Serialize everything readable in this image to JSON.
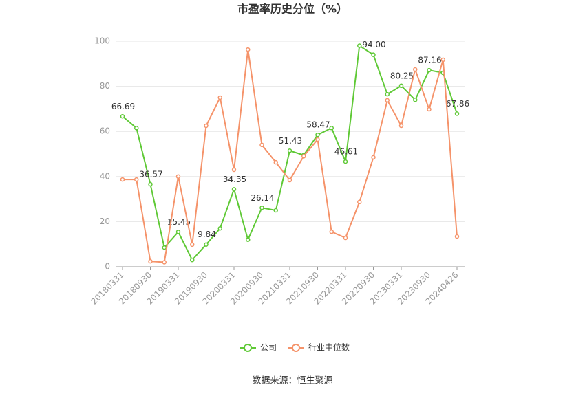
{
  "chart_data": {
    "type": "line",
    "title": "市盈率历史分位（%）",
    "categories": [
      "20180331",
      null,
      "20180930",
      null,
      "20190331",
      null,
      "20190930",
      null,
      "20200331",
      null,
      "20200930",
      null,
      "20210331",
      null,
      "20210930",
      null,
      "20220331",
      null,
      "20220930",
      null,
      "20230331",
      null,
      "20230930",
      null,
      "20240426"
    ],
    "series": [
      {
        "name": "公司",
        "color": "#5fc936",
        "values": [
          66.69,
          61.5,
          36.57,
          8.5,
          15.45,
          3,
          9.84,
          17,
          34.35,
          12,
          26.14,
          25,
          51.43,
          49.5,
          58.47,
          61.5,
          46.61,
          98,
          94,
          76.5,
          80.25,
          74,
          87.16,
          86,
          67.86
        ],
        "value_labels": [
          "66.69",
          null,
          "36.57",
          null,
          "15.45",
          null,
          "9.84",
          null,
          "34.35",
          null,
          "26.14",
          null,
          "51.43",
          null,
          "58.47",
          null,
          "46.61",
          null,
          "94.00",
          null,
          "80.25",
          null,
          "87.16",
          null,
          "67.86"
        ]
      },
      {
        "name": "行业中位数",
        "color": "#f5936a",
        "values": [
          38.7,
          38.7,
          2.4,
          2,
          40,
          9.8,
          62.5,
          75,
          43,
          96.3,
          54,
          46.3,
          38.4,
          49,
          56.4,
          15.5,
          12.8,
          28.7,
          48.5,
          73.8,
          62.5,
          87.5,
          69.8,
          91.8,
          13.4
        ]
      }
    ],
    "ylim": [
      0,
      100
    ],
    "yticks": [
      0,
      20,
      40,
      60,
      80,
      100
    ],
    "grid": true,
    "source": "数据来源：恒生聚源"
  }
}
